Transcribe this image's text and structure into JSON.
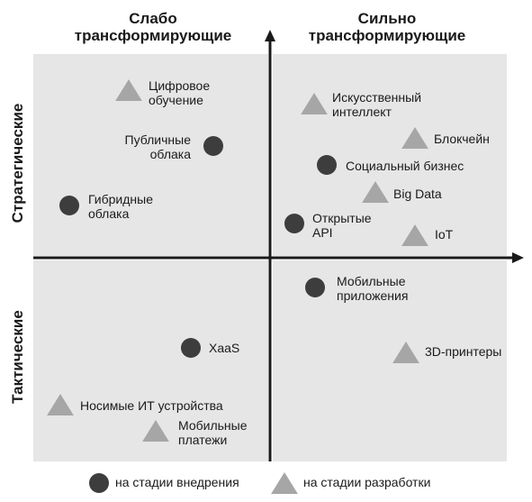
{
  "headers": {
    "weak": [
      "Слабо",
      "трансформирующие"
    ],
    "strong": [
      "Сильно",
      "трансформирующие"
    ],
    "strategic": "Стратегические",
    "tactical": "Тактические"
  },
  "items": [
    {
      "key": "digital-learning",
      "shape": "triangle",
      "lines": [
        "Цифровое",
        "обучение"
      ]
    },
    {
      "key": "public-clouds",
      "shape": "circle",
      "lines": [
        "Публичные",
        "облака"
      ]
    },
    {
      "key": "hybrid-clouds",
      "shape": "circle",
      "lines": [
        "Гибридные",
        "облака"
      ]
    },
    {
      "key": "ai",
      "shape": "triangle",
      "lines": [
        "Искусственный",
        "интеллект"
      ]
    },
    {
      "key": "blockchain",
      "shape": "triangle",
      "lines": [
        "Блокчейн"
      ]
    },
    {
      "key": "social-business",
      "shape": "circle",
      "lines": [
        "Социальный бизнес"
      ]
    },
    {
      "key": "big-data",
      "shape": "triangle",
      "lines": [
        "Big Data"
      ]
    },
    {
      "key": "open-api",
      "shape": "circle",
      "lines": [
        "Открытые",
        "API"
      ]
    },
    {
      "key": "iot",
      "shape": "triangle",
      "lines": [
        "IoT"
      ]
    },
    {
      "key": "mobile-apps",
      "shape": "circle",
      "lines": [
        "Мобильные",
        "приложения"
      ]
    },
    {
      "key": "xaas",
      "shape": "circle",
      "lines": [
        "XaaS"
      ]
    },
    {
      "key": "3d-printers",
      "shape": "triangle",
      "lines": [
        "3D-принтеры"
      ]
    },
    {
      "key": "wearables",
      "shape": "triangle",
      "lines": [
        "Носимые ИТ устройства"
      ]
    },
    {
      "key": "mobile-payments",
      "shape": "triangle",
      "lines": [
        "Мобильные",
        "платежи"
      ]
    }
  ],
  "legend": {
    "circle": "на стадии внедрения",
    "triangle": "на стадии разработки"
  },
  "colors": {
    "panel": "#e6e6e6",
    "axis": "#1a1a1a",
    "circle": "#3d3d3d",
    "triangle": "#a6a6a6"
  }
}
